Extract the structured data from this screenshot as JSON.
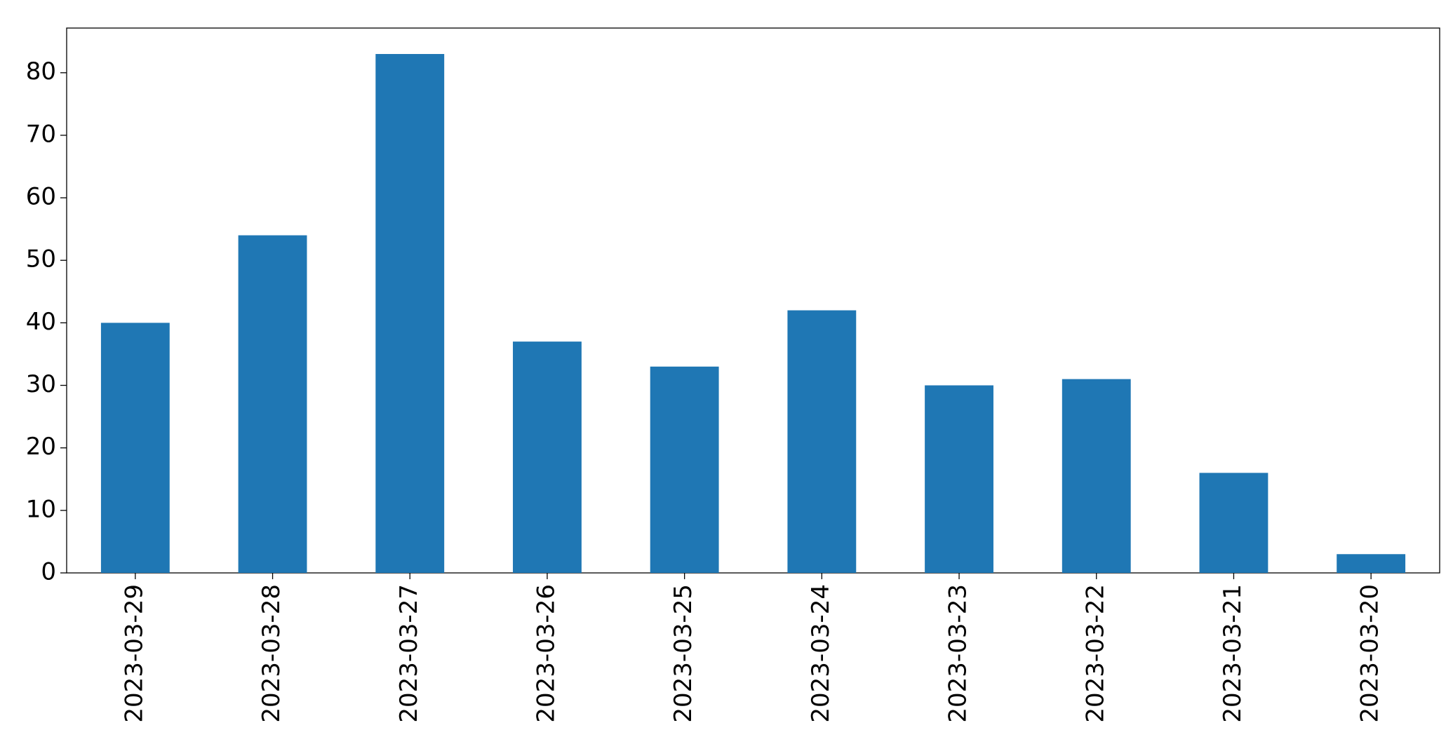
{
  "chart_data": {
    "type": "bar",
    "categories": [
      "2023-03-29",
      "2023-03-28",
      "2023-03-27",
      "2023-03-26",
      "2023-03-25",
      "2023-03-24",
      "2023-03-23",
      "2023-03-22",
      "2023-03-21",
      "2023-03-20"
    ],
    "values": [
      40,
      54,
      83,
      37,
      33,
      42,
      30,
      31,
      16,
      3
    ],
    "color": "#1f77b4",
    "ylim": [
      0,
      87.15
    ],
    "yticks": [
      0,
      10,
      20,
      30,
      40,
      50,
      60,
      70,
      80
    ],
    "grid": false
  }
}
